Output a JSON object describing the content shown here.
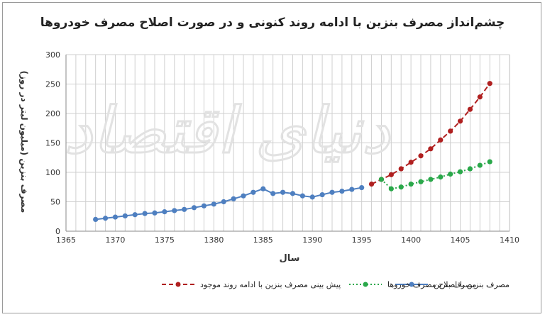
{
  "chart_data": {
    "type": "line",
    "title": "چشم‌انداز مصرف بنزین با ادامه روند کنونی و در صورت اصلاح مصرف خودروها",
    "xlabel": "سال",
    "ylabel": "مصرف بنزین (میلیون لیتر در روز)",
    "xlim": [
      1365,
      1410
    ],
    "ylim": [
      0,
      300
    ],
    "xticks": [
      1365,
      1370,
      1375,
      1380,
      1385,
      1390,
      1395,
      1400,
      1405,
      1410
    ],
    "yticks": [
      0,
      50,
      100,
      150,
      200,
      250,
      300
    ],
    "grid": true,
    "legend_position": "bottom",
    "watermark": "دنیای اقتصاد",
    "series": [
      {
        "name": "مصرف بنزین",
        "color": "#4e7fc0",
        "style": "solid",
        "x": [
          1368,
          1369,
          1370,
          1371,
          1372,
          1373,
          1374,
          1375,
          1376,
          1377,
          1378,
          1379,
          1380,
          1381,
          1382,
          1383,
          1384,
          1385,
          1386,
          1387,
          1388,
          1389,
          1390,
          1391,
          1392,
          1393,
          1394,
          1395
        ],
        "y": [
          20,
          22,
          24,
          26,
          28,
          30,
          31,
          33,
          35,
          37,
          40,
          43,
          46,
          50,
          55,
          60,
          66,
          72,
          64,
          66,
          64,
          60,
          58,
          62,
          66,
          68,
          71,
          74
        ]
      },
      {
        "name": "پیش بینی مصرف بنزین با ادامه روند موجود",
        "color": "#b02020",
        "style": "dashed",
        "x": [
          1396,
          1397,
          1398,
          1399,
          1400,
          1401,
          1402,
          1403,
          1404,
          1405,
          1406,
          1407,
          1408
        ],
        "y": [
          80,
          88,
          96,
          106,
          117,
          128,
          140,
          155,
          170,
          187,
          207,
          228,
          251
        ]
      },
      {
        "name": "مصرف بنزین با اصلاح مصرف خوروها",
        "color": "#2aa84a",
        "style": "dotted",
        "x": [
          1397,
          1398,
          1399,
          1400,
          1401,
          1402,
          1403,
          1404,
          1405,
          1406,
          1407,
          1408
        ],
        "y": [
          88,
          72,
          75,
          80,
          84,
          88,
          92,
          97,
          101,
          106,
          112,
          118
        ]
      }
    ]
  }
}
